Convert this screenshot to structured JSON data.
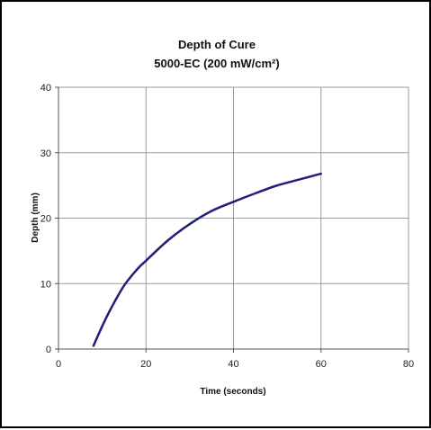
{
  "chart_data": {
    "type": "line",
    "title": "Depth of Cure",
    "subtitle": "5000-EC (200 mW/cm²)",
    "xlabel": "Time (seconds)",
    "ylabel": "Depth (mm)",
    "xlim": [
      0,
      80
    ],
    "ylim": [
      0,
      40
    ],
    "xticks": [
      0,
      20,
      40,
      60,
      80
    ],
    "yticks": [
      0,
      10,
      20,
      30,
      40
    ],
    "grid": true,
    "legend": "none",
    "series": [
      {
        "color": "#1f1f7a",
        "x": [
          8,
          10,
          12,
          15,
          18,
          20,
          25,
          30,
          35,
          40,
          45,
          50,
          55,
          60
        ],
        "y": [
          0.5,
          3.5,
          6.2,
          9.7,
          12.2,
          13.5,
          16.6,
          19.1,
          21.1,
          22.5,
          23.8,
          25.0,
          25.9,
          26.8
        ]
      }
    ]
  }
}
